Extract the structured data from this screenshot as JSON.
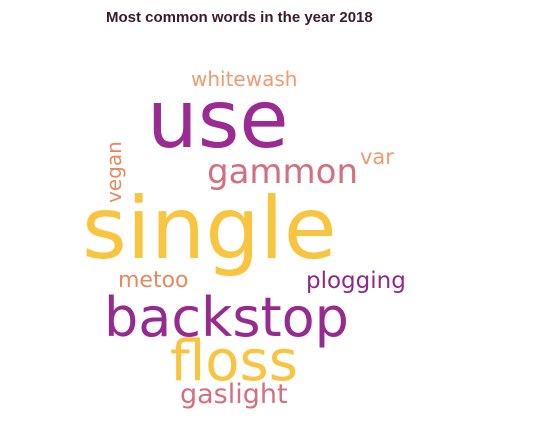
{
  "title": "Most common words in the year 2018",
  "words": {
    "use": {
      "text": "use",
      "color": "#9b2a92"
    },
    "single": {
      "text": "single",
      "color": "#f9c440"
    },
    "backstop": {
      "text": "backstop",
      "color": "#962a90"
    },
    "floss": {
      "text": "floss",
      "color": "#f9c440"
    },
    "gammon": {
      "text": "gammon",
      "color": "#d36f7e"
    },
    "gaslight": {
      "text": "gaslight",
      "color": "#d36f7e"
    },
    "plogging": {
      "text": "plogging",
      "color": "#8f2a8a"
    },
    "metoo": {
      "text": "metoo",
      "color": "#e98860"
    },
    "whitewash": {
      "text": "whitewash",
      "color": "#ef9a72"
    },
    "var": {
      "text": "var",
      "color": "#ef9a72"
    },
    "vegan": {
      "text": "vegan",
      "color": "#e98860"
    }
  }
}
